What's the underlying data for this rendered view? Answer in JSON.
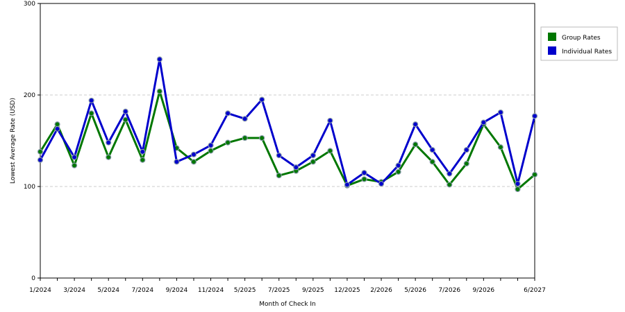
{
  "chart_data": {
    "type": "line",
    "xlabel": "Month of Check In",
    "ylabel": "Lowest Average Rate (USD)",
    "ylim": [
      0,
      300
    ],
    "yticks": [
      "0",
      "100",
      "200",
      "300"
    ],
    "grid": "horizontal-dashed",
    "legend_position": "right",
    "x_tick_labels": [
      {
        "index": 0,
        "label": "1/2024"
      },
      {
        "index": 2,
        "label": "3/2024"
      },
      {
        "index": 4,
        "label": "5/2024"
      },
      {
        "index": 6,
        "label": "7/2024"
      },
      {
        "index": 8,
        "label": "9/2024"
      },
      {
        "index": 10,
        "label": "11/2024"
      },
      {
        "index": 12,
        "label": "5/2025"
      },
      {
        "index": 14,
        "label": "7/2025"
      },
      {
        "index": 16,
        "label": "9/2025"
      },
      {
        "index": 18,
        "label": "12/2025"
      },
      {
        "index": 20,
        "label": "2/2026"
      },
      {
        "index": 22,
        "label": "5/2026"
      },
      {
        "index": 24,
        "label": "7/2026"
      },
      {
        "index": 26,
        "label": "9/2026"
      },
      {
        "index": 29,
        "label": "6/2027"
      }
    ],
    "point_count": 30,
    "series": [
      {
        "name": "Group Rates",
        "color": "#007700",
        "values": [
          138,
          168,
          123,
          180,
          132,
          173,
          129,
          204,
          142,
          127,
          139,
          148,
          153,
          153,
          112,
          117,
          127,
          139,
          101,
          108,
          105,
          116,
          146,
          127,
          102,
          125,
          168,
          143,
          97,
          113
        ]
      },
      {
        "name": "Individual Rates",
        "color": "#0000cc",
        "values": [
          129,
          163,
          132,
          194,
          148,
          182,
          138,
          239,
          127,
          135,
          145,
          180,
          174,
          195,
          134,
          121,
          134,
          172,
          102,
          115,
          103,
          123,
          168,
          140,
          114,
          140,
          170,
          181,
          103,
          177
        ]
      }
    ]
  }
}
